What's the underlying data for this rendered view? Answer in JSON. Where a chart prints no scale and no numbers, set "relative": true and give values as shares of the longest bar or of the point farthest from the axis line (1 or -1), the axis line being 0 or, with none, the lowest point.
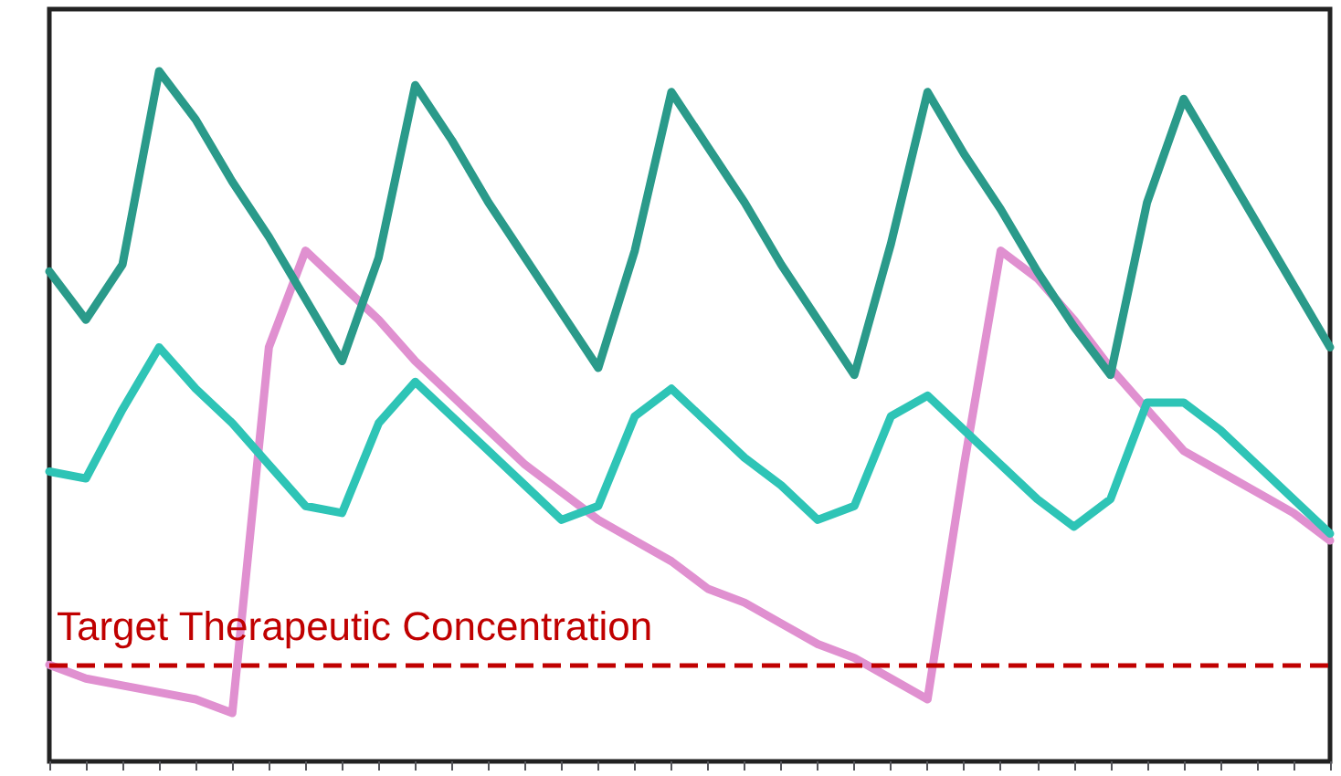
{
  "chart_data": {
    "type": "line",
    "relative": true,
    "grid": false,
    "marker": "none",
    "line_style": "solid",
    "categories": [
      null,
      null,
      null,
      null,
      null,
      null,
      null,
      null,
      null,
      null,
      null,
      null,
      null,
      null,
      null,
      null,
      null,
      null,
      null,
      null,
      null,
      null,
      null,
      null,
      null,
      null,
      null,
      null,
      null,
      null,
      null,
      null,
      null,
      null,
      null,
      null
    ],
    "series": [
      {
        "color": "#2a9a8a",
        "values": [
          0.71,
          0.64,
          0.72,
          1.0,
          0.93,
          0.84,
          0.76,
          0.67,
          0.58,
          0.73,
          0.98,
          0.9,
          0.81,
          0.73,
          0.65,
          0.57,
          0.74,
          0.97,
          0.89,
          0.81,
          0.72,
          0.64,
          0.56,
          0.75,
          0.97,
          0.88,
          0.8,
          0.71,
          0.63,
          0.56,
          0.81,
          0.96,
          0.87,
          0.78,
          0.69,
          0.6
        ]
      },
      {
        "color": "#2ec4b6",
        "values": [
          0.42,
          0.41,
          0.51,
          0.6,
          0.54,
          0.49,
          0.43,
          0.37,
          0.36,
          0.49,
          0.55,
          0.5,
          0.45,
          0.4,
          0.35,
          0.37,
          0.5,
          0.54,
          0.49,
          0.44,
          0.4,
          0.35,
          0.37,
          0.5,
          0.53,
          0.48,
          0.43,
          0.38,
          0.34,
          0.38,
          0.52,
          0.52,
          0.48,
          0.43,
          0.38,
          0.33
        ]
      },
      {
        "color": "#e090d0",
        "values": [
          0.14,
          0.12,
          0.11,
          0.1,
          0.09,
          0.07,
          0.6,
          0.74,
          0.69,
          0.64,
          0.58,
          0.53,
          0.48,
          0.43,
          0.39,
          0.35,
          0.32,
          0.29,
          0.25,
          0.23,
          0.2,
          0.17,
          0.15,
          0.12,
          0.09,
          0.43,
          0.74,
          0.7,
          0.64,
          0.57,
          0.51,
          0.45,
          0.42,
          0.39,
          0.36,
          0.32
        ]
      }
    ],
    "ref_lines": [
      {
        "axis": "y",
        "value": 0.14,
        "label": "Target Therapeutic Concentration",
        "color": "#c00000",
        "line_style": "dashed"
      }
    ]
  }
}
